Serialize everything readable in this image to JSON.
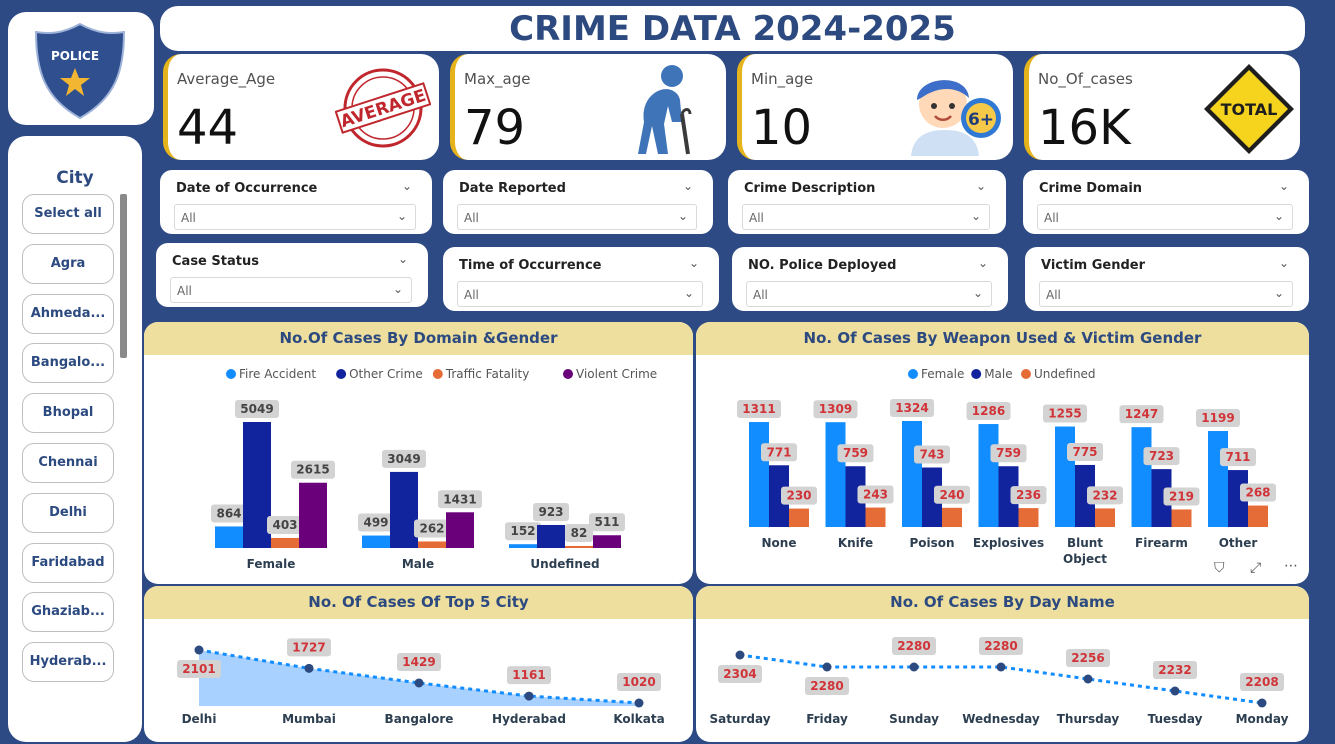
{
  "title": "CRIME DATA 2024-2025",
  "logo": {
    "badge_text": "POLICE",
    "colors": {
      "shield": "#2f4f8f",
      "star": "#f2b632"
    }
  },
  "kpis": [
    {
      "label": "Average_Age",
      "value": "44",
      "art_text": "AVERAGE",
      "icon": "average-stamp-icon"
    },
    {
      "label": "Max_age",
      "value": "79",
      "icon": "elderly-person-icon"
    },
    {
      "label": "Min_age",
      "value": "10",
      "art_text": "6+",
      "icon": "child-icon"
    },
    {
      "label": "No_Of_cases",
      "value": "16K",
      "art_text": "TOTAL",
      "icon": "total-sign-icon"
    }
  ],
  "city_slicer": {
    "title": "City",
    "items": [
      "Select all",
      "Agra",
      "Ahmeda...",
      "Bangalo...",
      "Bhopal",
      "Chennai",
      "Delhi",
      "Faridabad",
      "Ghaziab...",
      "Hyderab..."
    ]
  },
  "filters": [
    {
      "label": "Date of Occurrence",
      "value": "All"
    },
    {
      "label": "Date Reported",
      "value": "All"
    },
    {
      "label": "Crime Description",
      "value": "All"
    },
    {
      "label": "Crime Domain",
      "value": "All"
    },
    {
      "label": "Case Status",
      "value": "All"
    },
    {
      "label": "Time of Occurrence",
      "value": "All"
    },
    {
      "label": "NO. Police Deployed",
      "value": "All"
    },
    {
      "label": "Victim Gender",
      "value": "All"
    }
  ],
  "chart_data": [
    {
      "type": "bar",
      "title": "No.Of Cases By Domain &Gender",
      "categories": [
        "Female",
        "Male",
        "Undefined"
      ],
      "series": [
        {
          "name": "Fire Accident",
          "color": "#118dff",
          "values": [
            864,
            499,
            152
          ]
        },
        {
          "name": "Other Crime",
          "color": "#12239e",
          "values": [
            5049,
            3049,
            923
          ]
        },
        {
          "name": "Traffic Fatality",
          "color": "#e66c37",
          "values": [
            403,
            262,
            82
          ]
        },
        {
          "name": "Violent Crime",
          "color": "#6b007b",
          "values": [
            2615,
            1431,
            511
          ]
        }
      ],
      "legend": "top-center",
      "grid": false
    },
    {
      "type": "bar",
      "title": "No. Of Cases By Weapon Used & Victim Gender",
      "categories": [
        "None",
        "Knife",
        "Poison",
        "Explosives",
        "Blunt Object",
        "Firearm",
        "Other"
      ],
      "series": [
        {
          "name": "Female",
          "color": "#118dff",
          "values": [
            1311,
            1309,
            1324,
            1286,
            1255,
            1247,
            1199
          ]
        },
        {
          "name": "Male",
          "color": "#12239e",
          "values": [
            771,
            759,
            743,
            759,
            775,
            723,
            711
          ]
        },
        {
          "name": "Undefined",
          "color": "#e66c37",
          "values": [
            230,
            243,
            240,
            236,
            232,
            219,
            268
          ]
        }
      ],
      "legend": "top-center",
      "grid": false
    },
    {
      "type": "area",
      "title": "No. Of Cases Of Top 5 City",
      "categories": [
        "Delhi",
        "Mumbai",
        "Bangalore",
        "Hyderabad",
        "Kolkata"
      ],
      "values": [
        2101,
        1727,
        1429,
        1161,
        1020
      ],
      "color": "#118dff",
      "grid": false
    },
    {
      "type": "line",
      "title": "No. Of Cases By Day Name",
      "categories": [
        "Saturday",
        "Friday",
        "Sunday",
        "Wednesday",
        "Thursday",
        "Tuesday",
        "Monday"
      ],
      "values": [
        2304,
        2280,
        2280,
        2280,
        2256,
        2232,
        2208
      ],
      "color": "#118dff",
      "grid": false
    }
  ]
}
